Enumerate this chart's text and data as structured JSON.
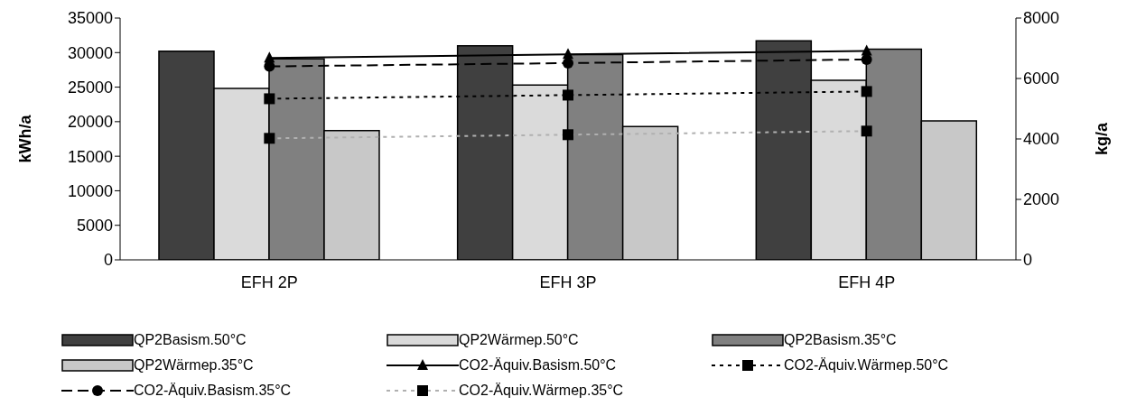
{
  "chart_data": {
    "type": "bar",
    "categories": [
      "EFH 2P",
      "EFH 3P",
      "EFH 4P"
    ],
    "ylabel": "kWh/a",
    "y2label": "kg/a",
    "ylim": [
      0,
      35000
    ],
    "yticks": [
      0,
      5000,
      10000,
      15000,
      20000,
      25000,
      30000,
      35000
    ],
    "y2lim": [
      0,
      8000
    ],
    "y2ticks": [
      0,
      2000,
      4000,
      6000,
      8000
    ],
    "legend": "bottom",
    "grid": false,
    "series": [
      {
        "name": "QP2Basism.50°C",
        "color": "#404040",
        "values": [
          30200,
          31000,
          31700
        ]
      },
      {
        "name": "QP2Wärmep.50°C",
        "color": "#dadada",
        "values": [
          24800,
          25300,
          26000
        ]
      },
      {
        "name": "QP2Basism.35°C",
        "color": "#808080",
        "values": [
          29100,
          29700,
          30500
        ]
      },
      {
        "name": "QP2Wärmep.35°C",
        "color": "#c8c8c8",
        "values": [
          18700,
          19300,
          20100
        ]
      },
      {
        "name": "CO2-Äquiv.Basism.50°C",
        "type": "line",
        "axis": "y2",
        "color": "#000000",
        "marker": "triangle",
        "line_style": "solid",
        "values": [
          6680,
          6800,
          6910
        ]
      },
      {
        "name": "CO2-Äquiv.Wärmep.50°C",
        "type": "line",
        "axis": "y2",
        "color": "#000000",
        "marker": "square",
        "line_style": "dotted",
        "values": [
          5330,
          5450,
          5570
        ]
      },
      {
        "name": "CO2-Äquiv.Basism.35°C",
        "type": "line",
        "axis": "y2",
        "color": "#000000",
        "marker": "circle",
        "line_style": "dashed",
        "values": [
          6400,
          6510,
          6630
        ]
      },
      {
        "name": "CO2-Äquiv.Wärmep.35°C",
        "type": "line",
        "axis": "y2",
        "color": "#b0b0b0",
        "marker": "square",
        "line_style": "dotted",
        "values": [
          4020,
          4140,
          4260
        ]
      }
    ]
  }
}
